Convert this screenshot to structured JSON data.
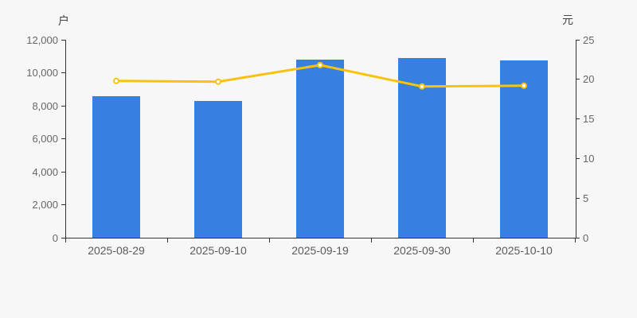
{
  "chart_data": {
    "type": "bar+line dual-axis",
    "categories": [
      "2025-08-29",
      "2025-09-10",
      "2025-09-19",
      "2025-09-30",
      "2025-10-10"
    ],
    "series": [
      {
        "type": "bar",
        "axis": "left",
        "unit": "户",
        "values": [
          8600,
          8300,
          10800,
          10900,
          10750
        ],
        "color": "#3780e0"
      },
      {
        "type": "line",
        "axis": "right",
        "unit": "元",
        "values": [
          19.8,
          19.7,
          21.8,
          19.1,
          19.2
        ],
        "color": "#f8c30e",
        "marker": "hollow-circle"
      }
    ],
    "left_axis": {
      "label": "户",
      "min": 0,
      "max": 12000,
      "step": 2000,
      "tick_labels": [
        "0",
        "2,000",
        "4,000",
        "6,000",
        "8,000",
        "10,000",
        "12,000"
      ]
    },
    "right_axis": {
      "label": "元",
      "min": 0,
      "max": 25,
      "step": 5,
      "tick_labels": [
        "0",
        "5",
        "10",
        "15",
        "20",
        "25"
      ]
    },
    "grid": false,
    "legend": false,
    "title": ""
  },
  "colors": {
    "background": "#f7f7f8",
    "bar": "#3780e0",
    "line": "#f8c30e",
    "marker_fill": "#ffffff",
    "axis": "#333333",
    "tick_text": "#666666",
    "unit_text": "#444444"
  }
}
